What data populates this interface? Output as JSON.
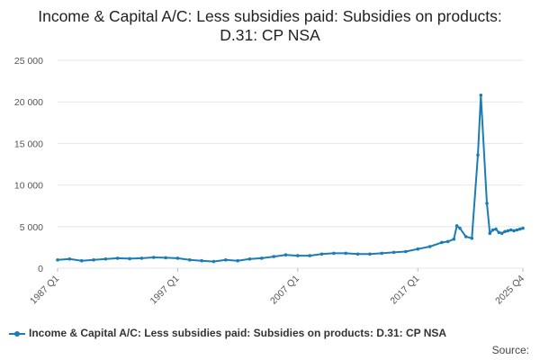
{
  "chart_data": {
    "type": "line",
    "title": "Income & Capital A/C: Less subsidies paid: Subsidies on products: D.31: CP NSA",
    "xlabel": "",
    "ylabel": "",
    "ylim": [
      0,
      25000
    ],
    "y_ticks": [
      "0",
      "5 000",
      "10 000",
      "15 000",
      "20 000",
      "25 000"
    ],
    "y_tick_values": [
      0,
      5000,
      10000,
      15000,
      20000,
      25000
    ],
    "x_ticks": [
      "1987 Q1",
      "1997 Q1",
      "2007 Q1",
      "2017 Q1",
      "2025 Q4"
    ],
    "x_range": [
      "1987 Q1",
      "2025 Q4"
    ],
    "grid": true,
    "legend_position": "bottom",
    "color": "#1a7db6",
    "series": [
      {
        "name": "Income & Capital A/C: Less subsidies paid: Subsidies on products: D.31: CP NSA",
        "x": [
          "1987 Q1",
          "1988 Q1",
          "1989 Q1",
          "1990 Q1",
          "1991 Q1",
          "1992 Q1",
          "1993 Q1",
          "1994 Q1",
          "1995 Q1",
          "1996 Q1",
          "1997 Q1",
          "1998 Q1",
          "1999 Q1",
          "2000 Q1",
          "2001 Q1",
          "2002 Q1",
          "2003 Q1",
          "2004 Q1",
          "2005 Q1",
          "2006 Q1",
          "2007 Q1",
          "2008 Q1",
          "2009 Q1",
          "2010 Q1",
          "2011 Q1",
          "2012 Q1",
          "2013 Q1",
          "2014 Q1",
          "2015 Q1",
          "2016 Q1",
          "2017 Q1",
          "2018 Q1",
          "2019 Q1",
          "2019 Q3",
          "2020 Q1",
          "2020 Q2",
          "2020 Q3",
          "2021 Q1",
          "2021 Q3",
          "2022 Q1",
          "2022 Q2",
          "2022 Q4",
          "2023 Q1",
          "2023 Q2",
          "2023 Q3",
          "2023 Q4",
          "2024 Q1",
          "2024 Q2",
          "2024 Q3",
          "2024 Q4",
          "2025 Q1",
          "2025 Q2",
          "2025 Q3",
          "2025 Q4"
        ],
        "values": [
          1000,
          1100,
          900,
          1000,
          1100,
          1200,
          1150,
          1200,
          1300,
          1250,
          1200,
          1000,
          900,
          800,
          1000,
          900,
          1100,
          1200,
          1400,
          1600,
          1500,
          1500,
          1700,
          1800,
          1800,
          1700,
          1700,
          1800,
          1900,
          2000,
          2300,
          2600,
          3100,
          3200,
          3500,
          5100,
          4800,
          3800,
          3600,
          13600,
          20800,
          7800,
          4200,
          4600,
          4700,
          4300,
          4200,
          4400,
          4500,
          4600,
          4500,
          4600,
          4700,
          4800
        ]
      }
    ]
  },
  "legend": {
    "label": "Income & Capital A/C: Less subsidies paid: Subsidies on products: D.31: CP NSA"
  },
  "source": {
    "label": "Source:"
  }
}
